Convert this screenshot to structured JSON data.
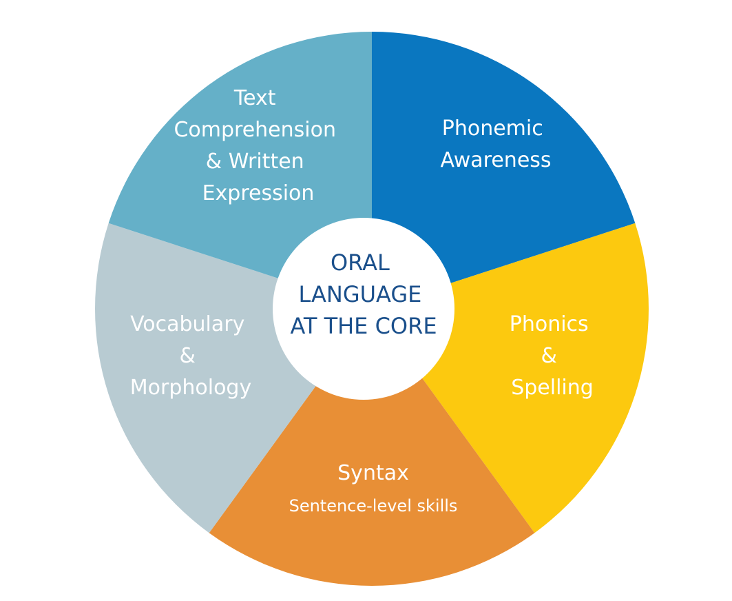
{
  "diagram": {
    "center": {
      "lines": [
        "ORAL",
        "LANGUAGE",
        "AT THE CORE"
      ],
      "color": "#1a4f8b"
    },
    "segments": [
      {
        "lines": [
          "Phonemic",
          "Awareness"
        ],
        "color": "#0a77c0"
      },
      {
        "lines": [
          "Phonics",
          "&",
          "Spelling"
        ],
        "color": "#fcc90f"
      },
      {
        "lines": [
          "Syntax"
        ],
        "sublabel": "Sentence-level skills",
        "color": "#e88f36"
      },
      {
        "lines": [
          "Vocabulary",
          "&",
          "Morphology"
        ],
        "color": "#b8cbd2"
      },
      {
        "lines": [
          "Text",
          "Comprehension",
          "& Written",
          "Expression"
        ],
        "color": "#65b0c8"
      }
    ]
  }
}
